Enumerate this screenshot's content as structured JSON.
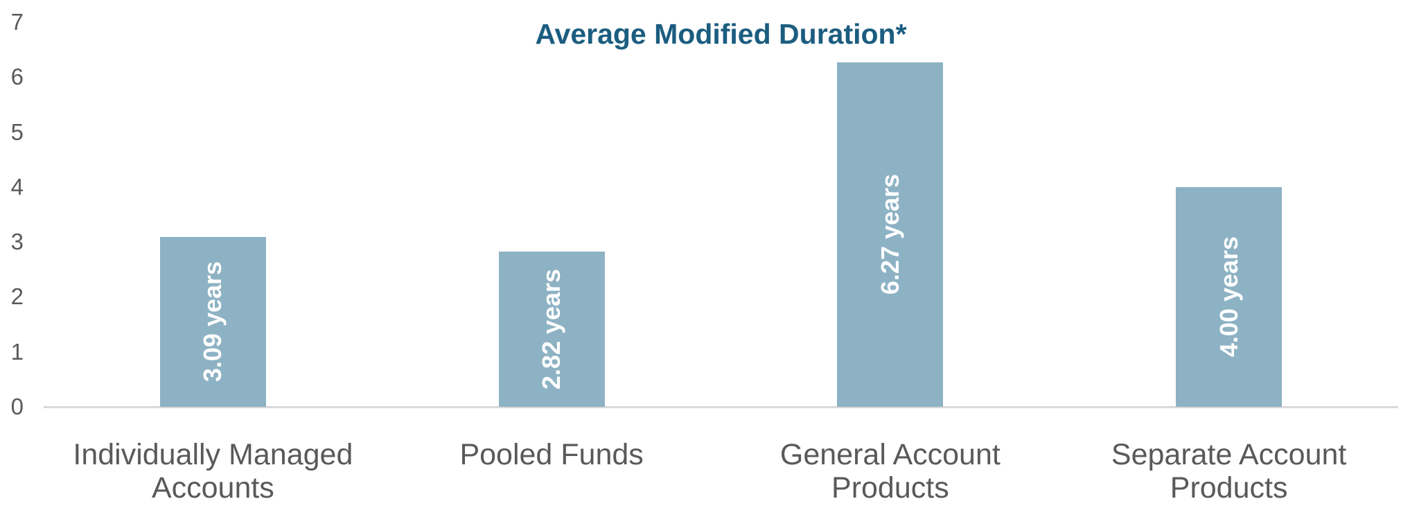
{
  "title": "Average Modified Duration*",
  "chart_data": {
    "type": "bar",
    "title": "Average Modified Duration*",
    "categories": [
      "Individually Managed Accounts",
      "Pooled Funds",
      "General Account Products",
      "Separate Account Products"
    ],
    "category_lines": [
      [
        "Individually Managed",
        "Accounts"
      ],
      [
        "Pooled Funds"
      ],
      [
        "General Account Products"
      ],
      [
        "Separate Account",
        "Products"
      ]
    ],
    "values": [
      3.09,
      2.82,
      6.27,
      4.0
    ],
    "bar_labels": [
      "3.09 years",
      "2.82 years",
      "6.27 years",
      "4.00 years"
    ],
    "xlabel": "",
    "ylabel": "",
    "ylim": [
      0,
      7
    ],
    "yticks": [
      0,
      1,
      2,
      3,
      4,
      5,
      6,
      7
    ],
    "grid": false,
    "legend": "none",
    "colors": {
      "bar": "#8db2c4",
      "title": "#1b5d80",
      "axis_text": "#595959",
      "axis_line": "#d9d9d9",
      "bar_label_text": "#ffffff",
      "background": "#ffffff"
    }
  }
}
